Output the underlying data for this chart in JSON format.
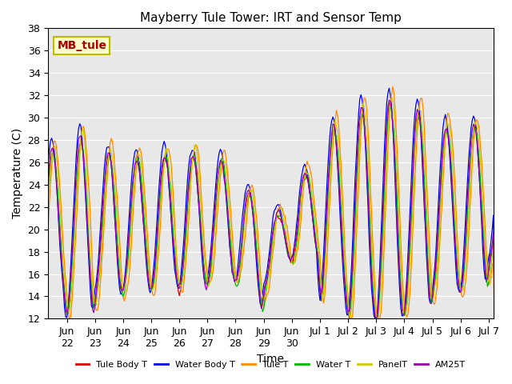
{
  "title": "Mayberry Tule Tower: IRT and Sensor Temp",
  "xlabel": "Time",
  "ylabel": "Temperature (C)",
  "ylim": [
    12,
    38
  ],
  "yticks": [
    12,
    14,
    16,
    18,
    20,
    22,
    24,
    26,
    28,
    30,
    32,
    34,
    36,
    38
  ],
  "legend_labels": [
    "Tule Body T",
    "Water Body T",
    "Tule T",
    "Water T",
    "PanelT",
    "AM25T"
  ],
  "legend_colors": [
    "#dd0000",
    "#0000ee",
    "#ff8800",
    "#00bb00",
    "#cccc00",
    "#9900aa"
  ],
  "watermark_text": "MB_tule",
  "watermark_color": "#aa0000",
  "watermark_bg": "#ffffcc",
  "watermark_border": "#bbbb00",
  "plot_bg": "#e8e8e8",
  "fig_bg": "#ffffff",
  "x_tick_labels": [
    "Jun\n22",
    "Jun\n23",
    "Jun\n24",
    "Jun\n25",
    "Jun\n26",
    "Jun\n27",
    "Jun\n28",
    "Jun\n29",
    "Jun\n30",
    "Jul 1",
    "Jul 2",
    "Jul 3",
    "Jul 4",
    "Jul 5",
    "Jul 6",
    "Jul 7"
  ],
  "x_tick_positions": [
    24,
    48,
    72,
    96,
    120,
    144,
    168,
    192,
    216,
    240,
    264,
    288,
    312,
    336,
    360,
    384
  ],
  "xlim": [
    8,
    388
  ]
}
